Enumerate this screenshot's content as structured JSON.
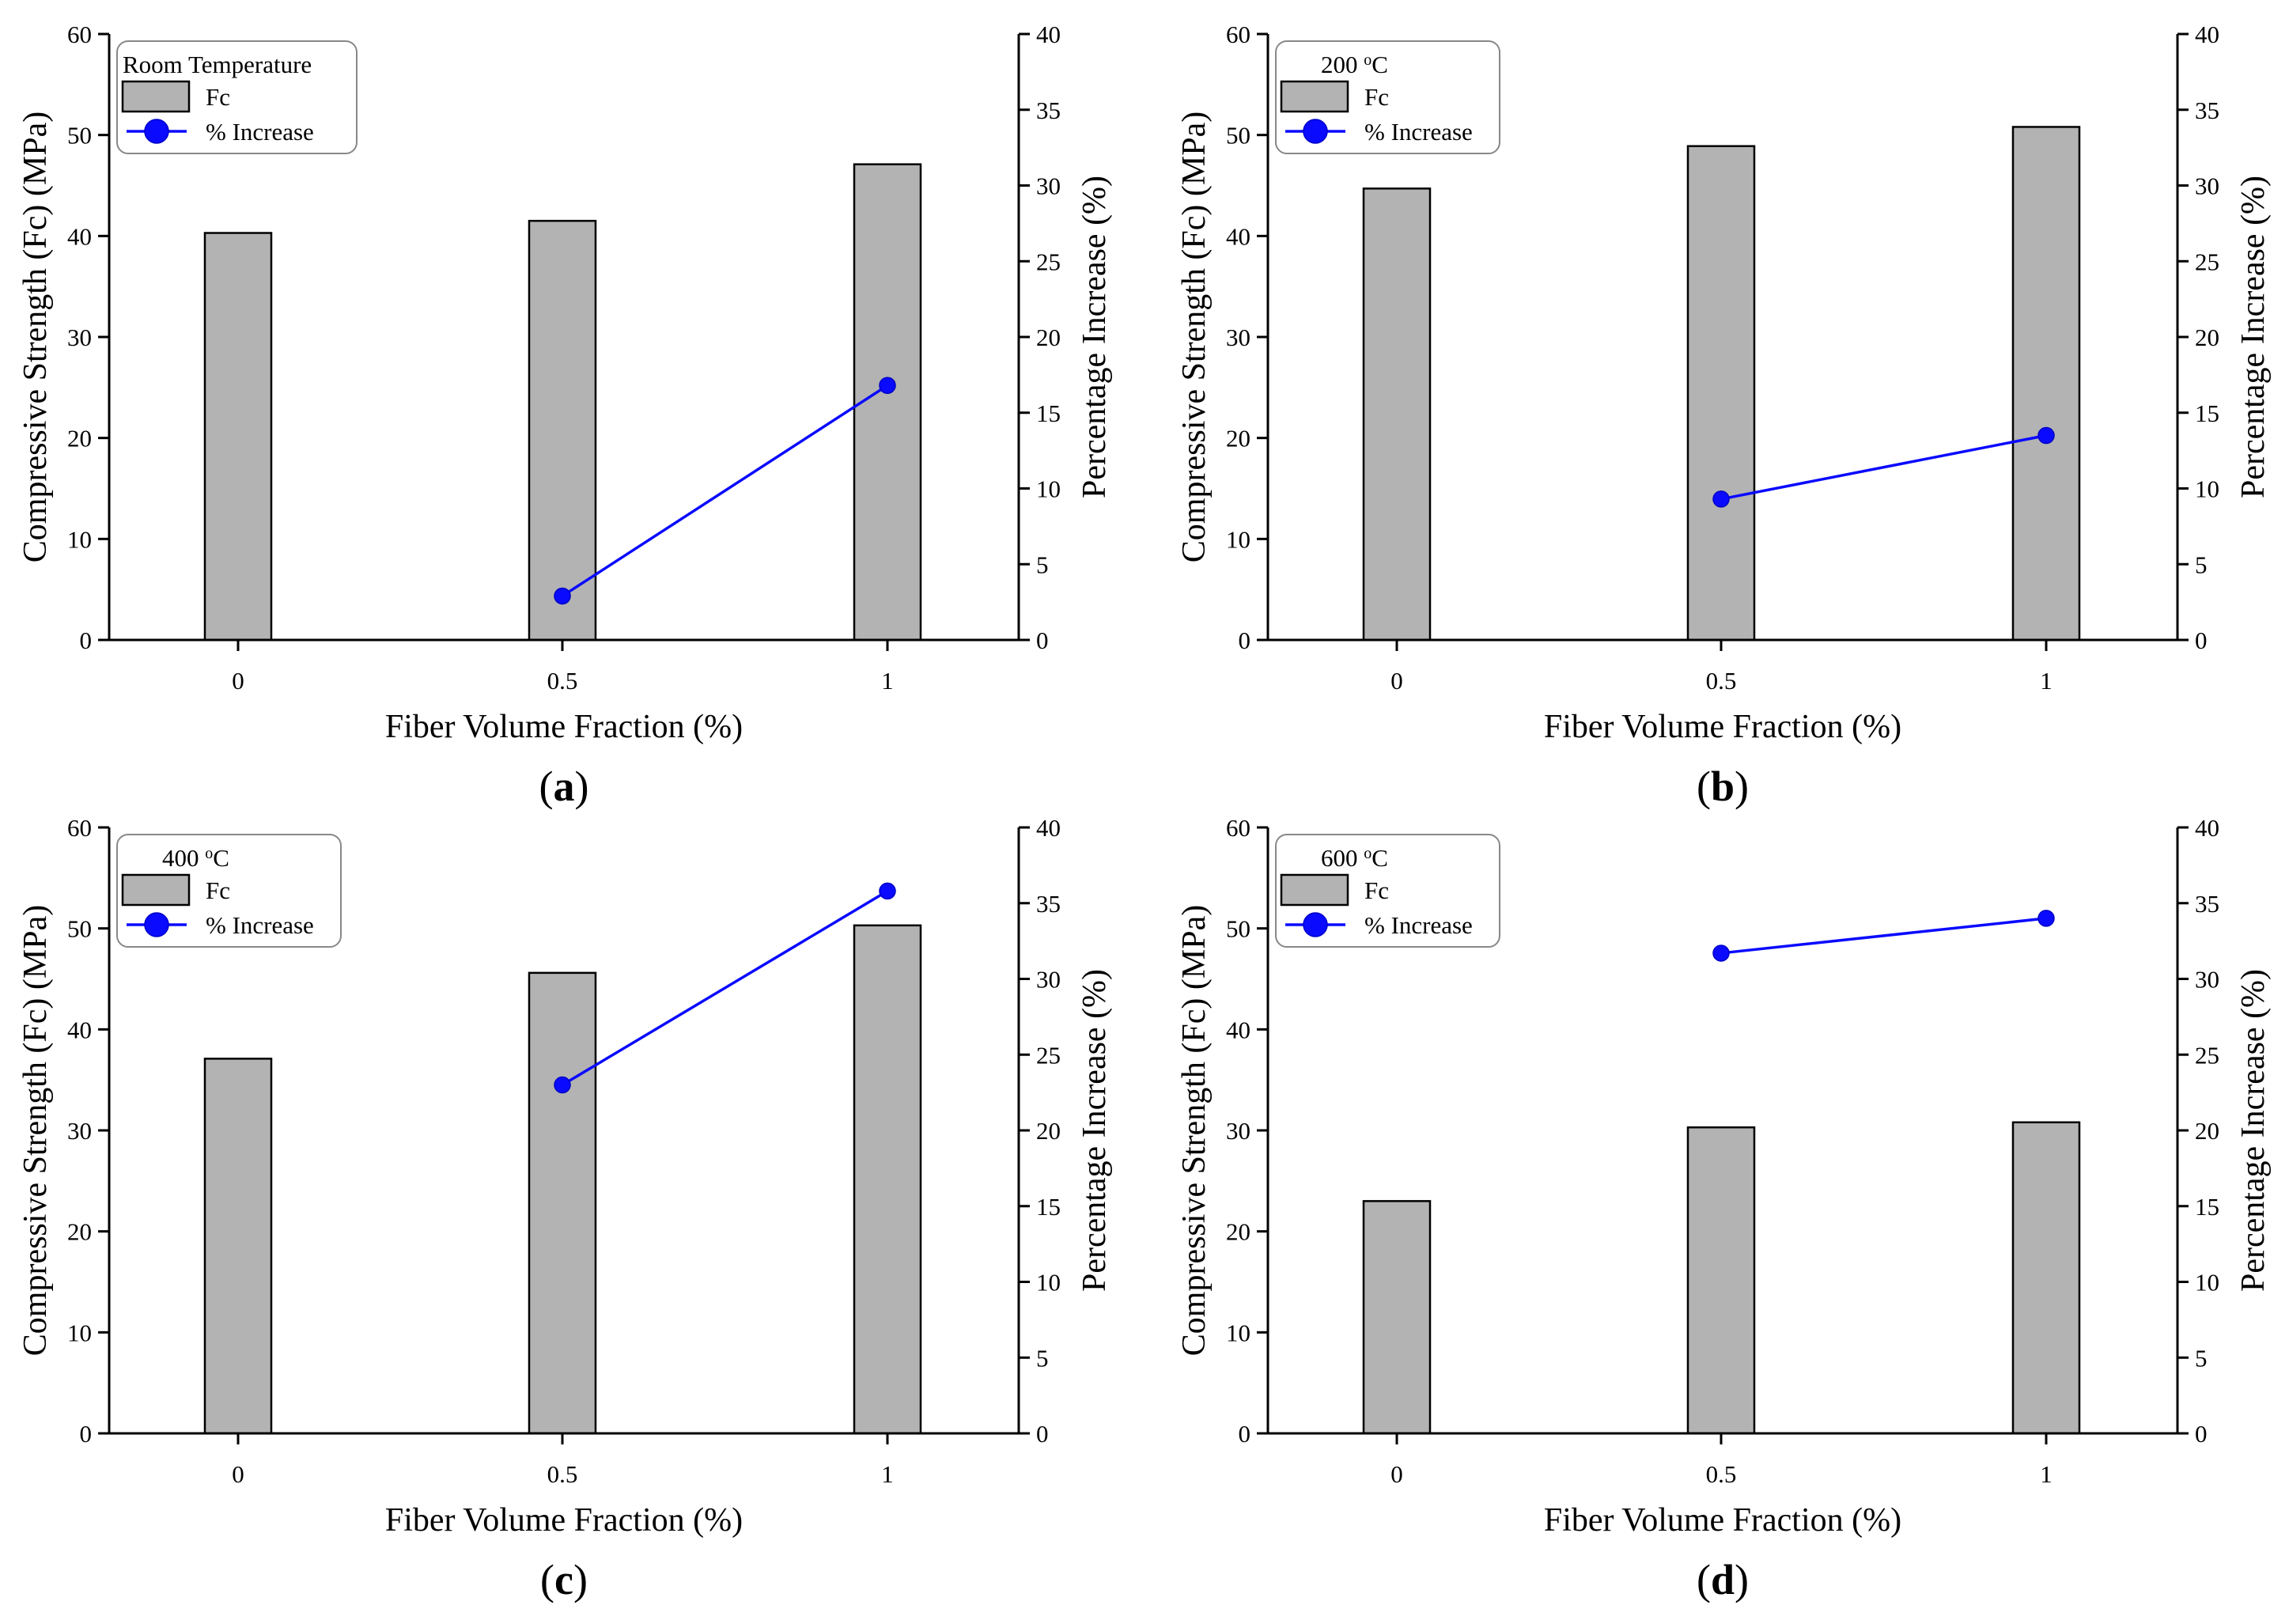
{
  "chart_data": [
    {
      "type": "bar",
      "panel_label": "a",
      "title": "Room Temperature",
      "title_sup": "",
      "title_suffix": "",
      "xlabel": "Fiber Volume Fraction (%)",
      "ylabel": "Compressive Strength (Fc) (MPa)",
      "y2label": "Percentage Increase (%)",
      "categories": [
        "0",
        "0.5",
        "1"
      ],
      "ylim": [
        0,
        60
      ],
      "yticks": [
        0,
        10,
        20,
        30,
        40,
        50,
        60
      ],
      "y2lim": [
        0,
        40
      ],
      "y2ticks": [
        0,
        5,
        10,
        15,
        20,
        25,
        30,
        35,
        40
      ],
      "series": [
        {
          "name": "Fc",
          "kind": "bar",
          "axis": "left",
          "values": [
            40.3,
            41.5,
            47.1
          ],
          "color": "#b3b3b3"
        },
        {
          "name": "% Increase",
          "kind": "line",
          "axis": "right",
          "values": [
            null,
            2.9,
            16.8
          ],
          "color": "#0a0aff"
        }
      ],
      "legend_position": "top-left"
    },
    {
      "type": "bar",
      "panel_label": "b",
      "title": "200 ",
      "title_sup": "o",
      "title_suffix": "C",
      "xlabel": "Fiber Volume Fraction (%)",
      "ylabel": "Compressive Strength (Fc) (MPa)",
      "y2label": "Percentage Increase (%)",
      "categories": [
        "0",
        "0.5",
        "1"
      ],
      "ylim": [
        0,
        60
      ],
      "yticks": [
        0,
        10,
        20,
        30,
        40,
        50,
        60
      ],
      "y2lim": [
        0,
        40
      ],
      "y2ticks": [
        0,
        5,
        10,
        15,
        20,
        25,
        30,
        35,
        40
      ],
      "series": [
        {
          "name": "Fc",
          "kind": "bar",
          "axis": "left",
          "values": [
            44.7,
            48.9,
            50.8
          ],
          "color": "#b3b3b3"
        },
        {
          "name": "% Increase",
          "kind": "line",
          "axis": "right",
          "values": [
            null,
            9.3,
            13.5
          ],
          "color": "#0a0aff"
        }
      ],
      "legend_position": "top-left"
    },
    {
      "type": "bar",
      "panel_label": "c",
      "title": "400 ",
      "title_sup": "o",
      "title_suffix": "C",
      "xlabel": "Fiber Volume Fraction (%)",
      "ylabel": "Compressive Strength (Fc) (MPa)",
      "y2label": "Percentage Increase (%)",
      "categories": [
        "0",
        "0.5",
        "1"
      ],
      "ylim": [
        0,
        60
      ],
      "yticks": [
        0,
        10,
        20,
        30,
        40,
        50,
        60
      ],
      "y2lim": [
        0,
        40
      ],
      "y2ticks": [
        0,
        5,
        10,
        15,
        20,
        25,
        30,
        35,
        40
      ],
      "series": [
        {
          "name": "Fc",
          "kind": "bar",
          "axis": "left",
          "values": [
            37.1,
            45.6,
            50.3
          ],
          "color": "#b3b3b3"
        },
        {
          "name": "% Increase",
          "kind": "line",
          "axis": "right",
          "values": [
            null,
            23.0,
            35.8
          ],
          "color": "#0a0aff"
        }
      ],
      "legend_position": "top-left"
    },
    {
      "type": "bar",
      "panel_label": "d",
      "title": "600 ",
      "title_sup": "o",
      "title_suffix": "C",
      "xlabel": "Fiber Volume Fraction (%)",
      "ylabel": "Compressive Strength (Fc) (MPa)",
      "y2label": "Percentage Increase (%)",
      "categories": [
        "0",
        "0.5",
        "1"
      ],
      "ylim": [
        0,
        60
      ],
      "yticks": [
        0,
        10,
        20,
        30,
        40,
        50,
        60
      ],
      "y2lim": [
        0,
        40
      ],
      "y2ticks": [
        0,
        5,
        10,
        15,
        20,
        25,
        30,
        35,
        40
      ],
      "series": [
        {
          "name": "Fc",
          "kind": "bar",
          "axis": "left",
          "values": [
            23.0,
            30.3,
            30.8
          ],
          "color": "#b3b3b3"
        },
        {
          "name": "% Increase",
          "kind": "line",
          "axis": "right",
          "values": [
            null,
            31.7,
            34.0
          ],
          "color": "#0a0aff"
        }
      ],
      "legend_position": "top-left"
    }
  ]
}
